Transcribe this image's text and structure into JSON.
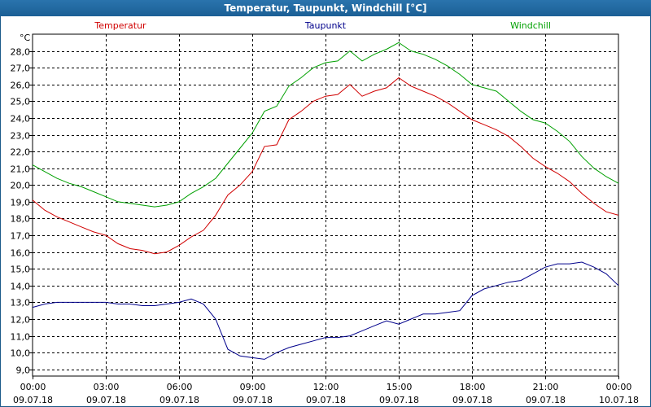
{
  "window_title": "Temperatur, Taupunkt, Windchill [°C]",
  "chart_data": {
    "type": "line",
    "title": "Temperatur, Taupunkt, Windchill [°C]",
    "ylabel": "°C",
    "ylim": [
      8.6,
      29.0
    ],
    "yticks": [
      "9,0",
      "10,0",
      "11,0",
      "12,0",
      "13,0",
      "14,0",
      "15,0",
      "16,0",
      "17,0",
      "18,0",
      "19,0",
      "20,0",
      "21,0",
      "22,0",
      "23,0",
      "24,0",
      "25,0",
      "26,0",
      "27,0",
      "28,0"
    ],
    "xlim": [
      0,
      24
    ],
    "xticks": [
      {
        "time": "00:00",
        "date": "09.07.18"
      },
      {
        "time": "03:00",
        "date": "09.07.18"
      },
      {
        "time": "06:00",
        "date": "09.07.18"
      },
      {
        "time": "09:00",
        "date": "09.07.18"
      },
      {
        "time": "12:00",
        "date": "09.07.18"
      },
      {
        "time": "15:00",
        "date": "09.07.18"
      },
      {
        "time": "18:00",
        "date": "09.07.18"
      },
      {
        "time": "21:00",
        "date": "09.07.18"
      },
      {
        "time": "00:00",
        "date": "10.07.18"
      }
    ],
    "grid": true,
    "series": [
      {
        "name": "Temperatur",
        "color": "#d00000",
        "x": [
          0,
          0.5,
          1,
          1.5,
          2,
          2.5,
          3,
          3.5,
          4,
          4.5,
          5,
          5.5,
          6,
          6.5,
          7,
          7.5,
          8,
          8.5,
          9,
          9.5,
          10,
          10.5,
          11,
          11.5,
          12,
          12.5,
          13,
          13.5,
          14,
          14.5,
          15,
          15.5,
          16,
          16.5,
          17,
          17.5,
          18,
          18.5,
          19,
          19.5,
          20,
          20.5,
          21,
          21.5,
          22,
          22.5,
          23,
          23.5,
          24
        ],
        "values": [
          19.1,
          18.5,
          18.1,
          17.8,
          17.5,
          17.2,
          17.0,
          16.5,
          16.2,
          16.1,
          15.9,
          16.0,
          16.4,
          16.9,
          17.3,
          18.2,
          19.4,
          20.0,
          20.8,
          22.3,
          22.4,
          23.9,
          24.4,
          25.0,
          25.3,
          25.4,
          26.0,
          25.3,
          25.6,
          25.8,
          26.4,
          25.9,
          25.6,
          25.3,
          24.9,
          24.4,
          23.9,
          23.6,
          23.3,
          22.9,
          22.3,
          21.6,
          21.1,
          20.7,
          20.2,
          19.5,
          18.9,
          18.4,
          18.2
        ]
      },
      {
        "name": "Taupunkt",
        "color": "#00008b",
        "x": [
          0,
          0.5,
          1,
          1.5,
          2,
          2.5,
          3,
          3.5,
          4,
          4.5,
          5,
          5.5,
          6,
          6.5,
          7,
          7.5,
          8,
          8.5,
          9,
          9.5,
          10,
          10.5,
          11,
          11.5,
          12,
          12.5,
          13,
          13.5,
          14,
          14.5,
          15,
          15.5,
          16,
          16.5,
          17,
          17.5,
          18,
          18.5,
          19,
          19.5,
          20,
          20.5,
          21,
          21.5,
          22,
          22.5,
          23,
          23.5,
          24
        ],
        "values": [
          12.7,
          12.9,
          13.0,
          13.0,
          13.0,
          13.0,
          13.0,
          12.9,
          12.9,
          12.8,
          12.8,
          12.9,
          13.0,
          13.2,
          12.9,
          12.0,
          10.2,
          9.8,
          9.7,
          9.6,
          10.0,
          10.3,
          10.5,
          10.7,
          10.9,
          10.9,
          11.0,
          11.3,
          11.6,
          11.9,
          11.7,
          12.0,
          12.3,
          12.3,
          12.4,
          12.5,
          13.4,
          13.8,
          14.0,
          14.2,
          14.3,
          14.7,
          15.1,
          15.3,
          15.3,
          15.4,
          15.1,
          14.7,
          14.0
        ]
      },
      {
        "name": "Windchill",
        "color": "#00a000",
        "x": [
          0,
          0.5,
          1,
          1.5,
          2,
          2.5,
          3,
          3.5,
          4,
          4.5,
          5,
          5.5,
          6,
          6.5,
          7,
          7.5,
          8,
          8.5,
          9,
          9.5,
          10,
          10.5,
          11,
          11.5,
          12,
          12.5,
          13,
          13.5,
          14,
          14.5,
          15,
          15.5,
          16,
          16.5,
          17,
          17.5,
          18,
          18.5,
          19,
          19.5,
          20,
          20.5,
          21,
          21.5,
          22,
          22.5,
          23,
          23.5,
          24
        ],
        "values": [
          21.2,
          20.8,
          20.4,
          20.1,
          19.9,
          19.6,
          19.3,
          19.0,
          18.9,
          18.8,
          18.7,
          18.8,
          19.0,
          19.5,
          19.9,
          20.4,
          21.3,
          22.2,
          23.1,
          24.4,
          24.7,
          25.9,
          26.4,
          27.0,
          27.3,
          27.4,
          28.0,
          27.4,
          27.8,
          28.1,
          28.5,
          28.0,
          27.8,
          27.5,
          27.1,
          26.6,
          26.0,
          25.8,
          25.6,
          25.0,
          24.4,
          23.9,
          23.7,
          23.2,
          22.6,
          21.7,
          21.0,
          20.5,
          20.1
        ]
      }
    ]
  }
}
